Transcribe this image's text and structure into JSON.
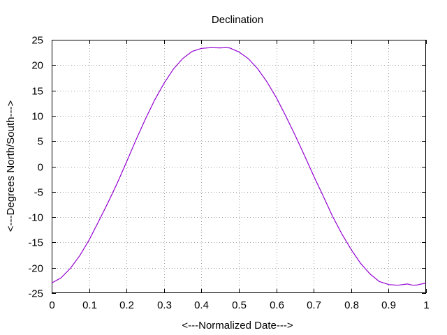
{
  "chart_data": {
    "type": "line",
    "title": "Declination",
    "xlabel": "<---Normalized Date--->",
    "ylabel": "<---Degrees North/South--->",
    "xlim": [
      0,
      1
    ],
    "ylim": [
      -25,
      25
    ],
    "xticks": [
      0,
      0.1,
      0.2,
      0.3,
      0.4,
      0.5,
      0.6,
      0.7,
      0.8,
      0.9,
      1
    ],
    "xtick_labels": [
      "0",
      "0.1",
      "0.2",
      "0.3",
      "0.4",
      "0.5",
      "0.6",
      "0.7",
      "0.8",
      "0.9",
      "1"
    ],
    "yticks": [
      25,
      20,
      15,
      10,
      5,
      0,
      -5,
      -10,
      -15,
      -20,
      -25
    ],
    "ytick_labels": [
      "25",
      "20",
      "15",
      "10",
      "5",
      "0",
      "-5",
      "-10",
      "-15",
      "-20",
      "-25"
    ],
    "grid": true,
    "series": [
      {
        "color": "#9400d3",
        "x": [
          0,
          0.025,
          0.05,
          0.075,
          0.1,
          0.125,
          0.15,
          0.175,
          0.2,
          0.225,
          0.25,
          0.275,
          0.3,
          0.325,
          0.35,
          0.375,
          0.4,
          0.425,
          0.45,
          0.465,
          0.475,
          0.5,
          0.525,
          0.55,
          0.575,
          0.6,
          0.625,
          0.65,
          0.675,
          0.7,
          0.725,
          0.75,
          0.775,
          0.8,
          0.825,
          0.85,
          0.875,
          0.9,
          0.925,
          0.95,
          0.965,
          0.975,
          1
        ],
        "y": [
          -23.0,
          -22.0,
          -20.1,
          -17.6,
          -14.5,
          -10.9,
          -7.2,
          -3.3,
          0.9,
          5.2,
          9.3,
          13.1,
          16.4,
          19.2,
          21.3,
          22.7,
          23.3,
          23.44,
          23.4,
          23.44,
          23.4,
          22.6,
          21.3,
          19.3,
          16.7,
          13.6,
          10.0,
          6.2,
          2.2,
          -1.9,
          -5.8,
          -9.8,
          -13.3,
          -16.4,
          -19.1,
          -21.2,
          -22.7,
          -23.3,
          -23.44,
          -23.2,
          -23.44,
          -23.4,
          -23.0
        ]
      }
    ]
  }
}
